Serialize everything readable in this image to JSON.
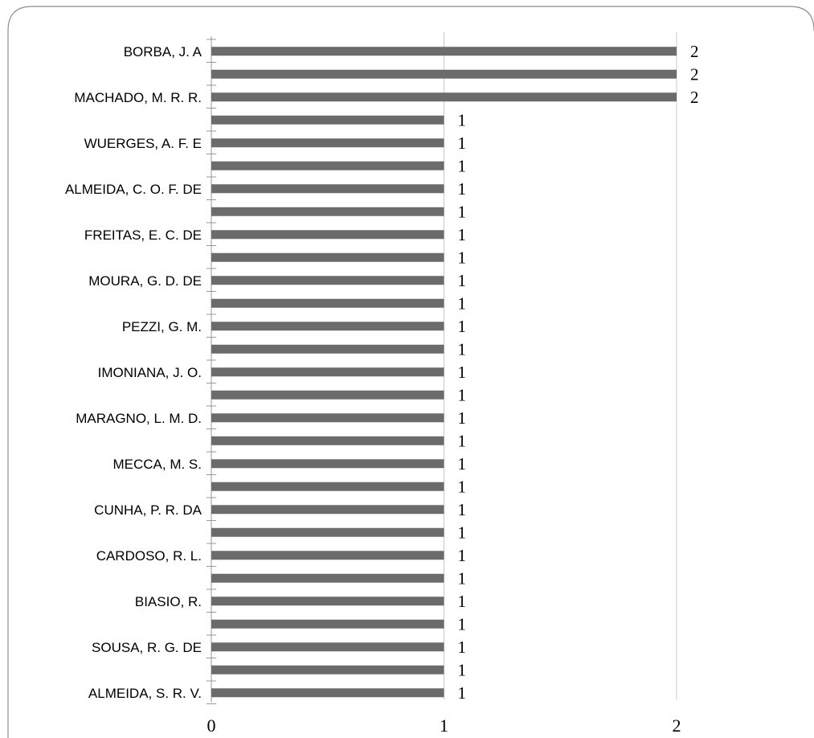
{
  "chart_data": {
    "type": "bar",
    "orientation": "horizontal",
    "categories": [
      "BORBA, J. A",
      "",
      "MACHADO, M. R. R.",
      "",
      "WUERGES, A. F. E",
      "",
      "ALMEIDA, C. O. F. DE",
      "",
      "FREITAS, E. C. DE",
      "",
      "MOURA, G. D. DE",
      "",
      "PEZZI, G. M.",
      "",
      "IMONIANA, J. O.",
      "",
      "MARAGNO, L. M. D.",
      "",
      "MECCA, M. S.",
      "",
      "CUNHA, P. R. DA",
      "",
      "CARDOSO, R. L.",
      "",
      "BIASIO, R.",
      "",
      "SOUSA, R. G. DE",
      "",
      "ALMEIDA, S. R. V."
    ],
    "values": [
      2,
      2,
      2,
      1,
      1,
      1,
      1,
      1,
      1,
      1,
      1,
      1,
      1,
      1,
      1,
      1,
      1,
      1,
      1,
      1,
      1,
      1,
      1,
      1,
      1,
      1,
      1,
      1,
      1
    ],
    "xlim": [
      0,
      2
    ],
    "x_ticks": [
      "0",
      "1",
      "2"
    ],
    "grid": true,
    "data_labels": true,
    "bar_color": "#6b6b6b",
    "grid_color": "#c8c8c8",
    "border_color": "#8c8c8c"
  }
}
